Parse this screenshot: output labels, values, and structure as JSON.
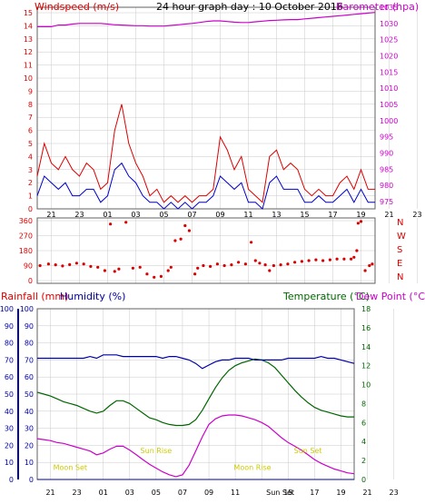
{
  "colors": {
    "wind": "#dd0000",
    "gust": "#0000cc",
    "baro": "#cc00cc",
    "humidity": "#0000aa",
    "temperature": "#006600",
    "dewpoint": "#cc00cc",
    "rain": "#000099",
    "astro": "#cccc00",
    "grid": "#c8c8c8",
    "axis": "#606060"
  },
  "time_labels": [
    "21",
    "23",
    "01",
    "03",
    "05",
    "07",
    "09",
    "11",
    "13",
    "15",
    "17",
    "19",
    "21",
    "23"
  ],
  "chart_data": [
    {
      "type": "line",
      "title": "24 hour graph day : 10 October 2016",
      "left_axis_label": "Windspeed (m/s)",
      "right_axis_label": "Barometer (hpa)",
      "left_ticks": [
        "0",
        "1",
        "2",
        "3",
        "4",
        "5",
        "6",
        "7",
        "8",
        "9",
        "10",
        "11",
        "12",
        "13",
        "14",
        "15"
      ],
      "right_ticks": [
        "975",
        "980",
        "985",
        "990",
        "995",
        "1000",
        "1005",
        "1010",
        "1015",
        "1020",
        "1025",
        "1030",
        "1035"
      ],
      "ylim_left": [
        0,
        15
      ],
      "ylim_right": [
        975,
        1035
      ],
      "x_hours": [
        20,
        20.5,
        21,
        21.5,
        22,
        22.5,
        23,
        23.5,
        24,
        24.5,
        25,
        25.5,
        26,
        26.5,
        27,
        27.5,
        28,
        28.5,
        29,
        29.5,
        30,
        30.5,
        31,
        31.5,
        32,
        32.5,
        33,
        33.5,
        34,
        34.5,
        35,
        35.5,
        36,
        36.5,
        37,
        37.5,
        38,
        38.5,
        39,
        39.5,
        40,
        40.5,
        41,
        41.5,
        42,
        42.5,
        43,
        43.5,
        44
      ],
      "series": [
        {
          "name": "Windspeed",
          "values": [
            2.5,
            5,
            3.5,
            3,
            4,
            3,
            2.5,
            3.5,
            3,
            1.5,
            2,
            6,
            8,
            5,
            3.5,
            2.5,
            1,
            1.5,
            0.5,
            1,
            0.5,
            1,
            0.5,
            1,
            1,
            1.5,
            5.5,
            4.5,
            3,
            4,
            1.5,
            1,
            0.5,
            4,
            4.5,
            3,
            3.5,
            3,
            1.5,
            1,
            1.5,
            1,
            1,
            2,
            2.5,
            1.5,
            3,
            1.5,
            1.5
          ]
        },
        {
          "name": "Gust",
          "values": [
            1,
            2.5,
            2,
            1.5,
            2,
            1,
            1,
            1.5,
            1.5,
            0.5,
            1,
            3,
            3.5,
            2.5,
            2,
            1,
            0.5,
            0.5,
            0,
            0.5,
            0,
            0.5,
            0,
            0.5,
            0.5,
            1,
            2.5,
            2,
            1.5,
            2,
            0.5,
            0.5,
            0,
            2,
            2.5,
            1.5,
            1.5,
            1.5,
            0.5,
            0.5,
            1,
            0.5,
            0.5,
            1,
            1.5,
            0.5,
            1.5,
            0.5,
            0.5
          ]
        },
        {
          "name": "Barometer",
          "values": [
            1029,
            1029,
            1029,
            1029.5,
            1029.5,
            1029.8,
            1030,
            1030,
            1030,
            1030,
            1029.8,
            1029.6,
            1029.5,
            1029.4,
            1029.3,
            1029.3,
            1029.2,
            1029.2,
            1029.2,
            1029.4,
            1029.6,
            1029.8,
            1030,
            1030.3,
            1030.6,
            1030.8,
            1030.8,
            1030.6,
            1030.4,
            1030.3,
            1030.3,
            1030.5,
            1030.7,
            1030.9,
            1031,
            1031.1,
            1031.2,
            1031.2,
            1031.4,
            1031.6,
            1031.8,
            1032,
            1032.2,
            1032.4,
            1032.6,
            1032.8,
            1033,
            1033.2,
            1033.4
          ]
        }
      ]
    },
    {
      "type": "scatter",
      "series_name": "Wind direction",
      "right_labels": [
        "N",
        "W",
        "S",
        "E",
        "N"
      ],
      "left_ticks": [
        "0",
        "90",
        "180",
        "270",
        "360"
      ],
      "ylim": [
        0,
        360
      ],
      "points": [
        [
          20.2,
          90
        ],
        [
          20.8,
          100
        ],
        [
          21.3,
          95
        ],
        [
          21.8,
          88
        ],
        [
          22.3,
          96
        ],
        [
          22.8,
          105
        ],
        [
          23.3,
          100
        ],
        [
          23.8,
          85
        ],
        [
          24.3,
          80
        ],
        [
          24.8,
          60
        ],
        [
          25.2,
          340
        ],
        [
          25.5,
          55
        ],
        [
          25.8,
          70
        ],
        [
          26.3,
          350
        ],
        [
          26.8,
          75
        ],
        [
          27.3,
          80
        ],
        [
          27.8,
          40
        ],
        [
          28.3,
          20
        ],
        [
          28.8,
          25
        ],
        [
          29.3,
          60
        ],
        [
          29.5,
          80
        ],
        [
          29.8,
          240
        ],
        [
          30.2,
          250
        ],
        [
          30.5,
          330
        ],
        [
          30.8,
          300
        ],
        [
          31.2,
          40
        ],
        [
          31.4,
          75
        ],
        [
          31.8,
          90
        ],
        [
          32.3,
          85
        ],
        [
          32.8,
          100
        ],
        [
          33.3,
          90
        ],
        [
          33.8,
          95
        ],
        [
          34.3,
          110
        ],
        [
          34.8,
          100
        ],
        [
          35.2,
          230
        ],
        [
          35.5,
          120
        ],
        [
          35.8,
          105
        ],
        [
          36.2,
          95
        ],
        [
          36.5,
          60
        ],
        [
          36.8,
          90
        ],
        [
          37.3,
          95
        ],
        [
          37.8,
          100
        ],
        [
          38.3,
          110
        ],
        [
          38.8,
          115
        ],
        [
          39.3,
          120
        ],
        [
          39.8,
          125
        ],
        [
          40.3,
          120
        ],
        [
          40.8,
          125
        ],
        [
          41.3,
          130
        ],
        [
          41.8,
          130
        ],
        [
          42.3,
          130
        ],
        [
          42.5,
          140
        ],
        [
          42.7,
          180
        ],
        [
          42.8,
          345
        ],
        [
          43,
          355
        ],
        [
          43.3,
          60
        ],
        [
          43.6,
          90
        ],
        [
          43.8,
          100
        ]
      ]
    },
    {
      "type": "line",
      "left_axis_labels": [
        "Rainfall (mm)",
        "Humidity (%)"
      ],
      "right_axis_labels": [
        "Temperature (°C)",
        "Dew Point (°C)"
      ],
      "rain_ticks": [
        "0",
        "10",
        "20",
        "30",
        "40",
        "50",
        "60",
        "70",
        "80",
        "90",
        "100"
      ],
      "humidity_ticks": [
        "0",
        "10",
        "20",
        "30",
        "40",
        "50",
        "60",
        "70",
        "80",
        "90",
        "100"
      ],
      "temp_ticks": [
        "0",
        "2",
        "4",
        "6",
        "8",
        "10",
        "12",
        "14",
        "16",
        "18"
      ],
      "ylim_left": [
        0,
        100
      ],
      "ylim_right": [
        0,
        18
      ],
      "x_hours": [
        20,
        20.5,
        21,
        21.5,
        22,
        22.5,
        23,
        23.5,
        24,
        24.5,
        25,
        25.5,
        26,
        26.5,
        27,
        27.5,
        28,
        28.5,
        29,
        29.5,
        30,
        30.5,
        31,
        31.5,
        32,
        32.5,
        33,
        33.5,
        34,
        34.5,
        35,
        35.5,
        36,
        36.5,
        37,
        37.5,
        38,
        38.5,
        39,
        39.5,
        40,
        40.5,
        41,
        41.5,
        42,
        42.5,
        43,
        43.5,
        44
      ],
      "series": [
        {
          "name": "Humidity",
          "values": [
            71,
            71,
            71,
            71,
            71,
            71,
            71,
            71,
            72,
            71,
            73,
            73,
            73,
            72,
            72,
            72,
            72,
            72,
            72,
            71,
            72,
            72,
            71,
            70,
            68,
            65,
            67,
            69,
            70,
            70,
            71,
            71,
            71,
            70,
            70,
            70,
            70,
            70,
            71,
            71,
            71,
            71,
            71,
            72,
            71,
            71,
            70,
            69,
            68
          ]
        },
        {
          "name": "Temperature",
          "values": [
            9.2,
            9,
            8.8,
            8.5,
            8.2,
            8,
            7.8,
            7.5,
            7.2,
            7,
            7.2,
            7.8,
            8.3,
            8.3,
            8,
            7.5,
            7,
            6.5,
            6.3,
            6,
            5.8,
            5.7,
            5.7,
            5.8,
            6.3,
            7.3,
            8.5,
            9.7,
            10.7,
            11.5,
            12,
            12.3,
            12.5,
            12.7,
            12.6,
            12.3,
            11.8,
            11,
            10.2,
            9.4,
            8.7,
            8.1,
            7.6,
            7.3,
            7.1,
            6.9,
            6.7,
            6.6,
            6.6
          ]
        },
        {
          "name": "Dew Point",
          "values": [
            4.3,
            4.2,
            4.1,
            3.9,
            3.8,
            3.6,
            3.4,
            3.2,
            3,
            2.6,
            2.8,
            3.2,
            3.5,
            3.5,
            3.1,
            2.6,
            2.1,
            1.6,
            1.2,
            0.8,
            0.5,
            0.3,
            0.5,
            1.5,
            3,
            4.5,
            5.8,
            6.4,
            6.7,
            6.8,
            6.8,
            6.7,
            6.5,
            6.3,
            6,
            5.6,
            5,
            4.4,
            3.9,
            3.5,
            3.1,
            2.6,
            2.1,
            1.7,
            1.4,
            1.1,
            0.9,
            0.7,
            0.6
          ]
        },
        {
          "name": "Rainfall",
          "values": [
            0,
            0,
            0,
            0,
            0,
            0,
            0,
            0,
            0,
            0,
            0,
            0,
            0,
            0,
            0,
            0,
            0,
            0,
            0,
            0,
            0,
            0,
            0,
            0,
            0,
            0,
            0,
            0,
            0,
            0,
            0,
            0,
            0,
            0,
            0,
            0,
            0,
            0,
            0,
            0,
            0,
            0,
            0,
            0,
            0,
            0,
            0,
            0,
            0
          ]
        }
      ],
      "annotations": [
        {
          "text": "Moon Set",
          "hour": 22.5,
          "temp": 1.0
        },
        {
          "text": "Sun Rise",
          "hour": 29,
          "temp": 2.8
        },
        {
          "text": "Moon Rise",
          "hour": 36.3,
          "temp": 1.0
        },
        {
          "text": "Sun Set",
          "hour": 40.5,
          "temp": 2.8
        }
      ],
      "x_extra_label": {
        "text": "Sun Set",
        "hour": 38.4
      }
    }
  ]
}
